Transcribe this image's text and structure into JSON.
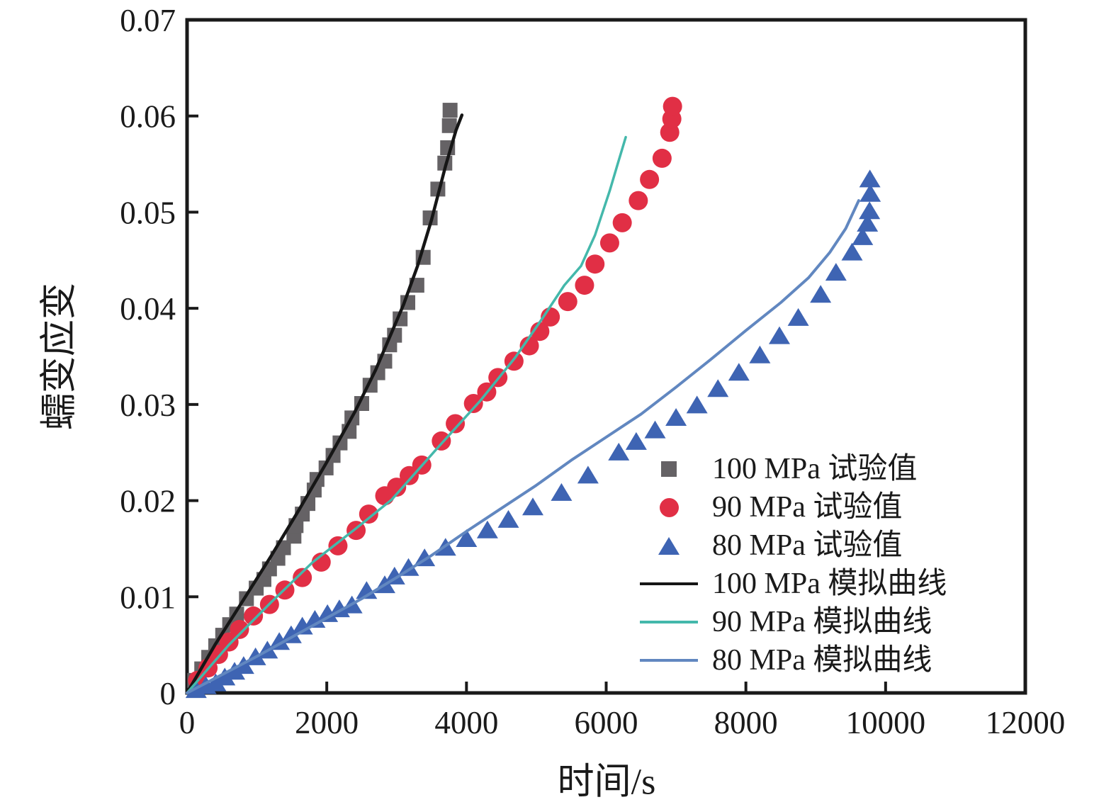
{
  "figure": {
    "background": "#ffffff",
    "text_color": "#1a1a1a",
    "axis_color": "#1a1a1a"
  },
  "chart_data": {
    "type": "line+scatter",
    "title": "",
    "xlabel": "时间/s",
    "ylabel": "蠕变应变",
    "xlim": [
      0,
      12000
    ],
    "ylim": [
      0,
      0.07
    ],
    "grid": false,
    "legend_position": "center-right",
    "x_ticks": {
      "values": [
        0,
        2000,
        4000,
        6000,
        8000,
        10000,
        12000
      ],
      "labels": [
        "0",
        "2000",
        "4000",
        "6000",
        "8000",
        "10000",
        "12000"
      ]
    },
    "y_ticks": {
      "values": [
        0,
        0.01,
        0.02,
        0.03,
        0.04,
        0.05,
        0.06,
        0.07
      ],
      "labels": [
        "0",
        "0.01",
        "0.02",
        "0.03",
        "0.04",
        "0.05",
        "0.06",
        "0.07"
      ]
    },
    "series": [
      {
        "name": "100 MPa 试验值",
        "type": "scatter",
        "marker": "square",
        "color": "#656265",
        "points": [
          [
            110,
            0.0013
          ],
          [
            210,
            0.0025
          ],
          [
            310,
            0.0037
          ],
          [
            410,
            0.0049
          ],
          [
            510,
            0.006
          ],
          [
            610,
            0.0071
          ],
          [
            710,
            0.0082
          ],
          [
            850,
            0.0098
          ],
          [
            990,
            0.0109
          ],
          [
            1100,
            0.0118
          ],
          [
            1180,
            0.0129
          ],
          [
            1300,
            0.014
          ],
          [
            1380,
            0.0151
          ],
          [
            1530,
            0.0163
          ],
          [
            1560,
            0.0174
          ],
          [
            1650,
            0.0186
          ],
          [
            1730,
            0.0197
          ],
          [
            1820,
            0.0211
          ],
          [
            1860,
            0.0222
          ],
          [
            1990,
            0.0234
          ],
          [
            2090,
            0.0247
          ],
          [
            2190,
            0.026
          ],
          [
            2320,
            0.0272
          ],
          [
            2360,
            0.0286
          ],
          [
            2500,
            0.0301
          ],
          [
            2620,
            0.032
          ],
          [
            2730,
            0.0333
          ],
          [
            2830,
            0.0345
          ],
          [
            2900,
            0.0362
          ],
          [
            2970,
            0.0372
          ],
          [
            3050,
            0.0389
          ],
          [
            3160,
            0.0406
          ],
          [
            3290,
            0.0424
          ],
          [
            3380,
            0.0453
          ],
          [
            3480,
            0.0494
          ],
          [
            3590,
            0.0524
          ],
          [
            3690,
            0.0551
          ],
          [
            3730,
            0.0567
          ],
          [
            3755,
            0.059
          ],
          [
            3765,
            0.0606
          ]
        ]
      },
      {
        "name": "90 MPa 试验值",
        "type": "scatter",
        "marker": "circle",
        "color": "#e12f45",
        "points": [
          [
            150,
            0.0013
          ],
          [
            300,
            0.0026
          ],
          [
            450,
            0.004
          ],
          [
            600,
            0.0053
          ],
          [
            750,
            0.0066
          ],
          [
            950,
            0.008
          ],
          [
            1180,
            0.0092
          ],
          [
            1400,
            0.0107
          ],
          [
            1650,
            0.012
          ],
          [
            1920,
            0.0136
          ],
          [
            2160,
            0.0153
          ],
          [
            2420,
            0.0169
          ],
          [
            2600,
            0.0186
          ],
          [
            2830,
            0.0205
          ],
          [
            3000,
            0.0214
          ],
          [
            3180,
            0.0226
          ],
          [
            3360,
            0.0237
          ],
          [
            3640,
            0.0262
          ],
          [
            3840,
            0.028
          ],
          [
            4100,
            0.0301
          ],
          [
            4290,
            0.0313
          ],
          [
            4450,
            0.0328
          ],
          [
            4680,
            0.0345
          ],
          [
            4900,
            0.0361
          ],
          [
            5050,
            0.0376
          ],
          [
            5200,
            0.0391
          ],
          [
            5450,
            0.0407
          ],
          [
            5690,
            0.0424
          ],
          [
            5840,
            0.0446
          ],
          [
            6050,
            0.0468
          ],
          [
            6230,
            0.0489
          ],
          [
            6460,
            0.0512
          ],
          [
            6620,
            0.0534
          ],
          [
            6800,
            0.0556
          ],
          [
            6910,
            0.0583
          ],
          [
            6940,
            0.0597
          ],
          [
            6950,
            0.061
          ]
        ]
      },
      {
        "name": "80 MPa 试验值",
        "type": "scatter",
        "marker": "triangle",
        "color": "#3e64b3",
        "points": [
          [
            130,
            0.0004
          ],
          [
            270,
            0.0008
          ],
          [
            410,
            0.0011
          ],
          [
            540,
            0.0017
          ],
          [
            680,
            0.0023
          ],
          [
            810,
            0.0029
          ],
          [
            980,
            0.0038
          ],
          [
            1150,
            0.0045
          ],
          [
            1320,
            0.0054
          ],
          [
            1490,
            0.0061
          ],
          [
            1650,
            0.007
          ],
          [
            1830,
            0.0077
          ],
          [
            2010,
            0.0083
          ],
          [
            2180,
            0.0088
          ],
          [
            2360,
            0.0092
          ],
          [
            2570,
            0.0107
          ],
          [
            2830,
            0.0113
          ],
          [
            2970,
            0.0122
          ],
          [
            3170,
            0.0131
          ],
          [
            3400,
            0.0141
          ],
          [
            3700,
            0.0152
          ],
          [
            4000,
            0.0161
          ],
          [
            4300,
            0.017
          ],
          [
            4600,
            0.0181
          ],
          [
            4950,
            0.0194
          ],
          [
            5360,
            0.0209
          ],
          [
            5740,
            0.0227
          ],
          [
            6180,
            0.0251
          ],
          [
            6430,
            0.0262
          ],
          [
            6700,
            0.0274
          ],
          [
            7000,
            0.0287
          ],
          [
            7300,
            0.03
          ],
          [
            7600,
            0.0317
          ],
          [
            7900,
            0.0334
          ],
          [
            8200,
            0.0352
          ],
          [
            8480,
            0.0372
          ],
          [
            8750,
            0.0391
          ],
          [
            9070,
            0.0415
          ],
          [
            9290,
            0.0438
          ],
          [
            9520,
            0.0459
          ],
          [
            9670,
            0.0475
          ],
          [
            9740,
            0.0489
          ],
          [
            9770,
            0.0502
          ],
          [
            9780,
            0.052
          ],
          [
            9775,
            0.0535
          ]
        ]
      },
      {
        "name": "100 MPa 模拟曲线",
        "type": "line",
        "color": "#161616",
        "width": 4.5,
        "points": [
          [
            0,
            0
          ],
          [
            400,
            0.005
          ],
          [
            800,
            0.0096
          ],
          [
            1200,
            0.0142
          ],
          [
            1600,
            0.019
          ],
          [
            2000,
            0.024
          ],
          [
            2400,
            0.0292
          ],
          [
            2700,
            0.0336
          ],
          [
            2900,
            0.037
          ],
          [
            3100,
            0.0404
          ],
          [
            3300,
            0.0444
          ],
          [
            3500,
            0.0492
          ],
          [
            3700,
            0.0548
          ],
          [
            3850,
            0.0585
          ],
          [
            3935,
            0.0601
          ]
        ]
      },
      {
        "name": "90 MPa 模拟曲线",
        "type": "line",
        "color": "#44b8ab",
        "width": 3.5,
        "points": [
          [
            0,
            0
          ],
          [
            600,
            0.005
          ],
          [
            1200,
            0.0094
          ],
          [
            1800,
            0.0136
          ],
          [
            2400,
            0.017
          ],
          [
            2930,
            0.0201
          ],
          [
            3600,
            0.0256
          ],
          [
            4200,
            0.0304
          ],
          [
            4700,
            0.0349
          ],
          [
            5100,
            0.0391
          ],
          [
            5400,
            0.0424
          ],
          [
            5640,
            0.0444
          ],
          [
            5840,
            0.0476
          ],
          [
            6050,
            0.0522
          ],
          [
            6160,
            0.0549
          ],
          [
            6280,
            0.0578
          ]
        ]
      },
      {
        "name": "80 MPa 模拟曲线",
        "type": "line",
        "color": "#6187c0",
        "width": 4,
        "points": [
          [
            0,
            0
          ],
          [
            500,
            0.0019
          ],
          [
            1000,
            0.0038
          ],
          [
            1500,
            0.0058
          ],
          [
            2000,
            0.0078
          ],
          [
            2500,
            0.0098
          ],
          [
            3000,
            0.012
          ],
          [
            3500,
            0.0143
          ],
          [
            4000,
            0.0168
          ],
          [
            4500,
            0.0192
          ],
          [
            5000,
            0.0216
          ],
          [
            5500,
            0.0242
          ],
          [
            6000,
            0.0266
          ],
          [
            6500,
            0.029
          ],
          [
            7000,
            0.0318
          ],
          [
            7500,
            0.0347
          ],
          [
            8000,
            0.0377
          ],
          [
            8500,
            0.0406
          ],
          [
            8900,
            0.0432
          ],
          [
            9200,
            0.0458
          ],
          [
            9430,
            0.0483
          ],
          [
            9615,
            0.0512
          ]
        ]
      }
    ]
  }
}
